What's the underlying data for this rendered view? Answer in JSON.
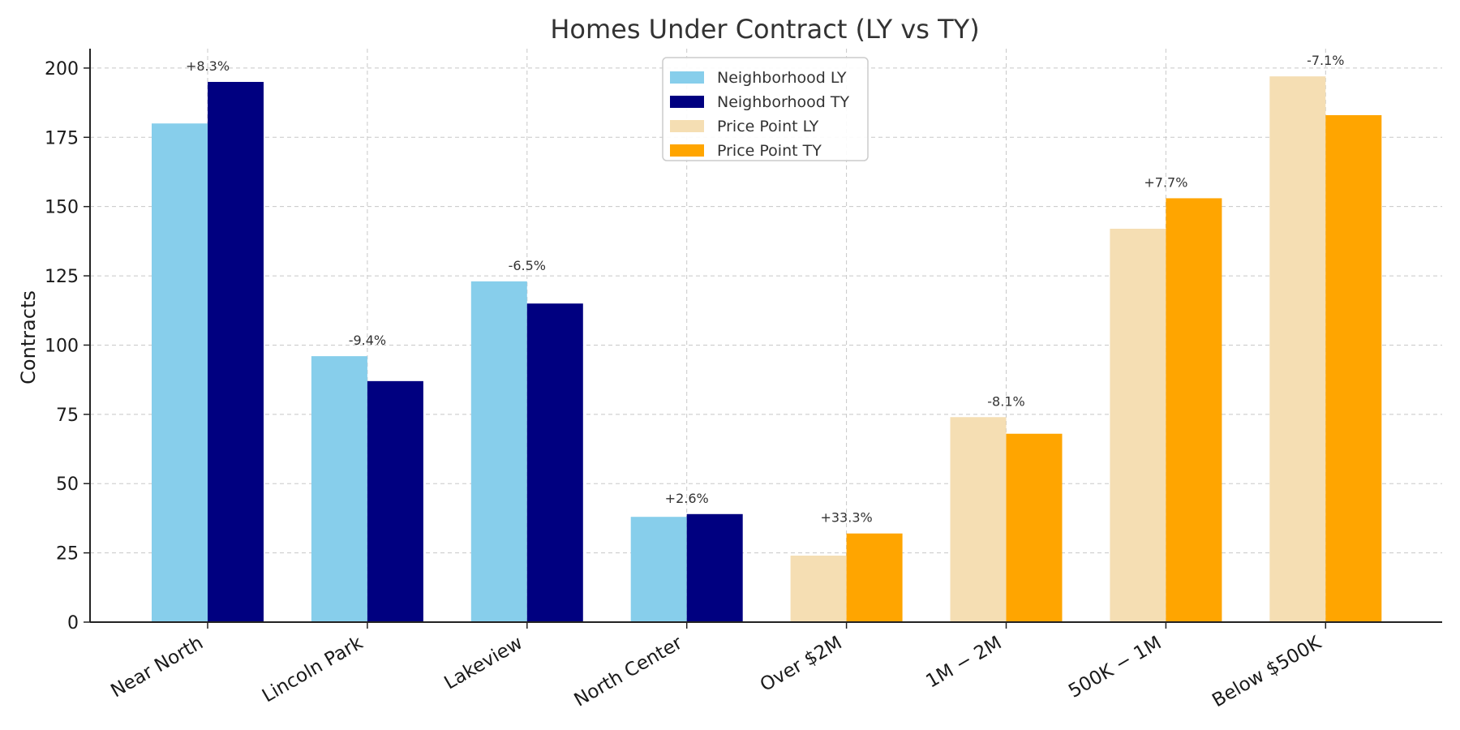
{
  "chart_data": {
    "type": "bar",
    "title": "Homes Under Contract (LY vs TY)",
    "xlabel": "",
    "ylabel": "Contracts",
    "ylim": [
      0,
      207
    ],
    "yticks": [
      0,
      25,
      50,
      75,
      100,
      125,
      150,
      175,
      200
    ],
    "grid": true,
    "legend_position": "top-center",
    "categories": [
      "Near North",
      "Lincoln Park",
      "Lakeview",
      "North Center",
      "Over $2M",
      "$1M-$2M",
      "$500K-$1M",
      "Below $500K"
    ],
    "category_tick_labels": [
      "Near North",
      "Lincoln Park",
      "Lakeview",
      "North Center",
      "Over $2M",
      "1M − 2M",
      "500K − 1M",
      "Below $500K"
    ],
    "category_groups": [
      "Neighborhood",
      "Neighborhood",
      "Neighborhood",
      "Neighborhood",
      "Price Point",
      "Price Point",
      "Price Point",
      "Price Point"
    ],
    "series": [
      {
        "name": "LY",
        "values": [
          180,
          96,
          123,
          38,
          24,
          74,
          142,
          197
        ]
      },
      {
        "name": "TY",
        "values": [
          195,
          87,
          115,
          39,
          32,
          68,
          153,
          183
        ]
      }
    ],
    "change_labels": [
      "+8.3%",
      "-9.4%",
      "-6.5%",
      "+2.6%",
      "+33.3%",
      "-8.1%",
      "+7.7%",
      "-7.1%"
    ],
    "legend": [
      {
        "label": "Neighborhood LY",
        "color": "#87ceeb"
      },
      {
        "label": "Neighborhood TY",
        "color": "#000080"
      },
      {
        "label": "Price Point LY",
        "color": "#f5deb3"
      },
      {
        "label": "Price Point TY",
        "color": "#ffa500"
      }
    ],
    "colors": {
      "Neighborhood": {
        "LY": "#87ceeb",
        "TY": "#000080"
      },
      "Price Point": {
        "LY": "#f5deb3",
        "TY": "#ffa500"
      }
    }
  }
}
